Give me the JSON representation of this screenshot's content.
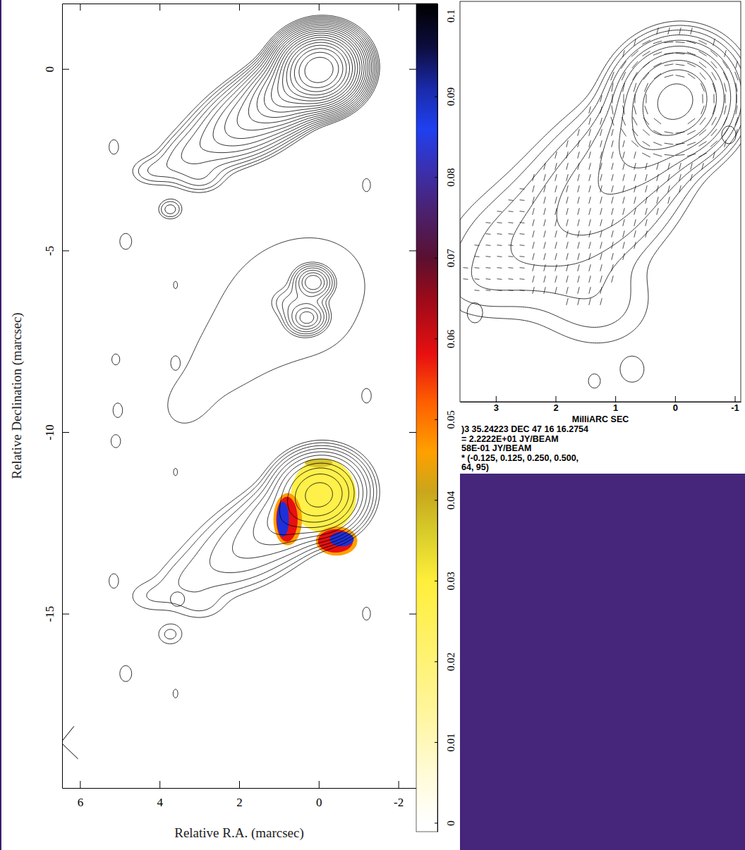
{
  "chart_data": [
    {
      "type": "contour",
      "xlabel": "Relative R.A. (marcsec)",
      "ylabel": "Relative Declination (marcsec)",
      "xlim": [
        6.45,
        -2.45
      ],
      "ylim": [
        -19.8,
        1.8
      ],
      "xticks": [
        6,
        4,
        2,
        0,
        -2
      ],
      "yticks": [
        0,
        -5,
        -10,
        -15
      ],
      "colorbar_lim": [
        -0.0011,
        0.1015
      ],
      "colorbar_ticks": [
        0,
        0.01,
        0.02,
        0.03,
        0.04,
        0.05,
        0.06,
        0.07,
        0.08,
        0.09,
        0.1
      ]
    },
    {
      "type": "contour",
      "marker": "vector",
      "xlabel": "MilliARC SEC",
      "xlim": [
        3.6,
        -1.1
      ],
      "ylim": [
        -5.1,
        1.65
      ],
      "xticks": [
        3,
        2,
        1,
        0,
        -1
      ],
      "tick_labels": "x",
      "annotations": [
        ")3 35.24223  DEC 47 16 16.2754",
        "= 2.2222E+01 JY/BEAM",
        "58E-01 JY/BEAM",
        "* (-0.125, 0.125, 0.250, 0.500,",
        "64, 95)"
      ]
    }
  ]
}
